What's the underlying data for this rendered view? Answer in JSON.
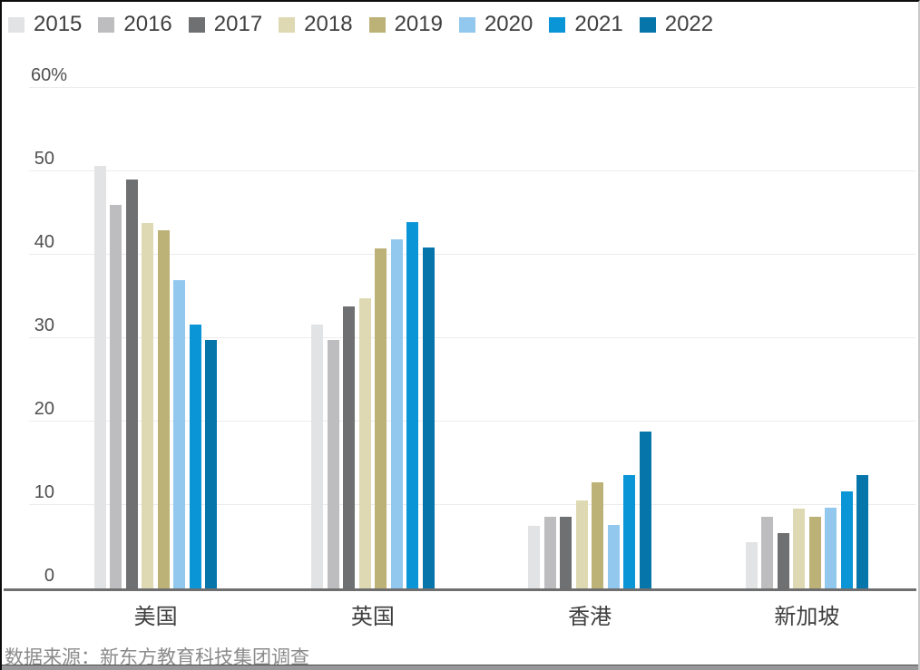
{
  "chart_data": {
    "type": "bar",
    "title": "",
    "categories": [
      "美国",
      "英国",
      "香港",
      "新加坡"
    ],
    "series": [
      {
        "name": "2015",
        "color": "#e2e3e4",
        "values": [
          50.7,
          31.6,
          7.5,
          5.5
        ]
      },
      {
        "name": "2016",
        "color": "#bdbdbf",
        "values": [
          46.0,
          29.8,
          8.6,
          8.6
        ]
      },
      {
        "name": "2017",
        "color": "#6f7072",
        "values": [
          49.0,
          33.8,
          8.6,
          6.6
        ]
      },
      {
        "name": "2018",
        "color": "#ded9b2",
        "values": [
          43.8,
          34.8,
          10.5,
          9.6
        ]
      },
      {
        "name": "2019",
        "color": "#bcb277",
        "values": [
          42.9,
          40.8,
          12.7,
          8.6
        ]
      },
      {
        "name": "2020",
        "color": "#93c8ee",
        "values": [
          37.0,
          41.9,
          7.6,
          9.7
        ]
      },
      {
        "name": "2021",
        "color": "#0a95d7",
        "values": [
          31.6,
          43.9,
          13.6,
          11.6
        ]
      },
      {
        "name": "2022",
        "color": "#0675aa",
        "values": [
          29.8,
          40.9,
          18.8,
          13.6
        ]
      }
    ],
    "ylim": [
      0,
      60
    ],
    "y_ticks": [
      {
        "value": 60,
        "label": "60%"
      },
      {
        "value": 50,
        "label": "50"
      },
      {
        "value": 40,
        "label": "40"
      },
      {
        "value": 30,
        "label": "30"
      },
      {
        "value": 20,
        "label": "20"
      },
      {
        "value": 10,
        "label": "10"
      },
      {
        "value": 0,
        "label": "0"
      }
    ],
    "grid": true,
    "legend_position": "top-left",
    "xlabel": "",
    "ylabel": ""
  },
  "source": {
    "text": "数据来源：新东方教育科技集团调查"
  },
  "colors": {
    "gridline": "#ececec",
    "axis_line": "#6f6f6f",
    "legend_text": "#404040",
    "tick_text": "#4f4f4f",
    "category_text": "#3f3f3f",
    "source_text": "#8b8b8b"
  }
}
